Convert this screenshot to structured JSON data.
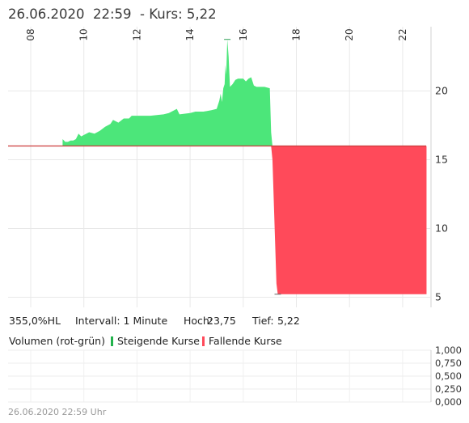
{
  "header": {
    "date": "26.06.2020",
    "time": "22:59",
    "price_label": "- Kurs: 5,22"
  },
  "colors": {
    "rising": "#4ce67a",
    "falling": "#ff4a5a",
    "baseline": "#cc3b3b",
    "grid": "#e8e8e8"
  },
  "chart_data": [
    {
      "type": "area",
      "title": "",
      "xlabel": "",
      "ylabel": "",
      "x_ticks": [
        "08",
        "10",
        "12",
        "14",
        "16",
        "18",
        "20",
        "22"
      ],
      "y_ticks": [
        "5",
        "10",
        "15",
        "20"
      ],
      "xlim": [
        7.75,
        23.0
      ],
      "ylim": [
        4.5,
        24.5
      ],
      "baseline": 16.0,
      "grid": true,
      "series": [
        {
          "name": "",
          "x": [
            9.2,
            9.3,
            9.4,
            9.5,
            9.6,
            9.7,
            9.8,
            9.9,
            10.0,
            10.2,
            10.4,
            10.6,
            10.8,
            11.0,
            11.1,
            11.3,
            11.5,
            11.7,
            11.8,
            12.0,
            12.5,
            13.0,
            13.2,
            13.5,
            13.6,
            14.0,
            14.2,
            14.5,
            14.8,
            15.0,
            15.1,
            15.15,
            15.2,
            15.25,
            15.3,
            15.33,
            15.36,
            15.4,
            15.45,
            15.5,
            15.6,
            15.7,
            15.8,
            16.0,
            16.1,
            16.2,
            16.3,
            16.4,
            16.5,
            16.6,
            16.8,
            17.0,
            17.05,
            17.1,
            17.15,
            17.2,
            17.25,
            17.3,
            17.4,
            17.5,
            18.0,
            19.0,
            20.0,
            21.0,
            22.0,
            22.9
          ],
          "y": [
            16.5,
            16.3,
            16.3,
            16.4,
            16.4,
            16.5,
            16.9,
            16.7,
            16.8,
            17.0,
            16.9,
            17.1,
            17.4,
            17.6,
            17.9,
            17.7,
            18.0,
            18.0,
            18.2,
            18.2,
            18.2,
            18.3,
            18.4,
            18.7,
            18.3,
            18.4,
            18.5,
            18.5,
            18.6,
            18.7,
            19.3,
            19.8,
            19.2,
            20.2,
            20.5,
            21.9,
            21.2,
            23.75,
            22.5,
            20.3,
            20.5,
            20.8,
            20.9,
            20.9,
            20.7,
            20.9,
            21.0,
            20.4,
            20.3,
            20.3,
            20.3,
            20.2,
            17.0,
            15.0,
            12.0,
            9.0,
            6.0,
            5.22,
            5.22,
            5.22,
            5.22,
            5.22,
            5.22,
            5.22,
            5.22,
            5.22
          ]
        }
      ]
    },
    {
      "type": "bar",
      "title": "Volumen (rot-grün)",
      "xlabel": "",
      "ylabel": "",
      "y_ticks": [
        "1,000",
        "0,750",
        "0,500",
        "0,250",
        "0,000"
      ],
      "ylim": [
        0,
        1.0
      ],
      "grid": true,
      "series": [
        {
          "name": "Steigende Kurse",
          "values": []
        },
        {
          "name": "Fallende Kurse",
          "values": []
        }
      ]
    }
  ],
  "info": {
    "range": "355,0%HL",
    "interval": "Intervall: 1 Minute",
    "high_label": "Hoch:",
    "high_value": "23,75",
    "low_label": "Tief:",
    "low_value": "5,22"
  },
  "volume": {
    "label": "Volumen (rot-grün)",
    "legend_up": "Steigende Kurse",
    "legend_down": "Fallende Kurse"
  },
  "footer": {
    "timestamp": "26.06.2020 22:59 Uhr"
  }
}
